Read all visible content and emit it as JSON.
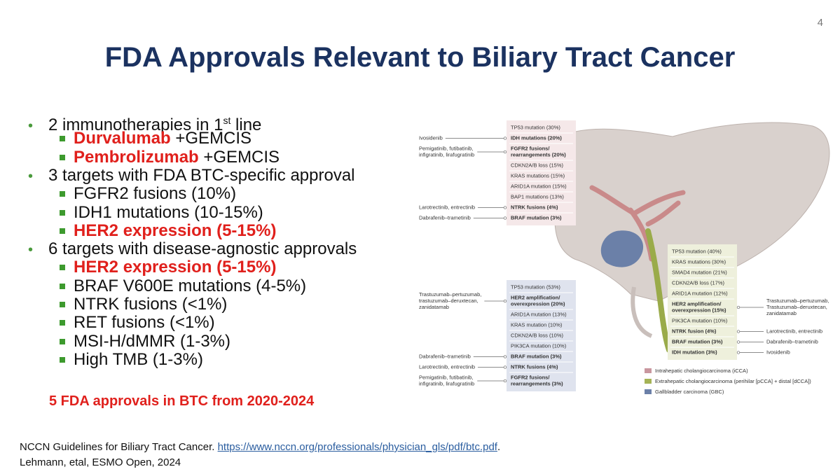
{
  "page_number": "4",
  "title": "FDA Approvals Relevant to Biliary Tract Cancer",
  "bullets": [
    {
      "text": "2 immunotherapies in 1",
      "sup": "st",
      "after": " line",
      "sub": [
        {
          "highlight": "Durvalumab",
          "text": " +GEMCIS"
        },
        {
          "highlight": "Pembrolizumab",
          "text": " +GEMCIS"
        }
      ]
    },
    {
      "text": "3 targets with FDA BTC-specific approval",
      "sub": [
        {
          "text": "FGFR2 fusions (10%)"
        },
        {
          "text": "IDH1 mutations (10-15%)"
        },
        {
          "highlight": "HER2 expression (5-15%)"
        }
      ]
    },
    {
      "text": "6 targets with disease-agnostic approvals",
      "sub": [
        {
          "highlight": "HER2 expression (5-15%)"
        },
        {
          "text": "BRAF V600E mutations (4-5%)"
        },
        {
          "text": "NTRK fusions (<1%)"
        },
        {
          "text": "RET fusions (<1%)"
        },
        {
          "text": "MSI-H/dMMR (1-3%)"
        },
        {
          "text": "High TMB (1-3%)"
        }
      ]
    }
  ],
  "note": "5 FDA approvals in BTC from 2020-2024",
  "references": [
    {
      "text": "NCCN Guidelines for Biliary Tract Cancer. ",
      "link": "https://www.nccn.org/professionals/physician_gls/pdf/btc.pdf",
      "after": "."
    },
    {
      "text": "Lehmann, etal, ESMO Open, 2024"
    }
  ],
  "figure": {
    "groups": [
      {
        "legend": "Intrahepatic cholangiocarcinoma (iCCA)",
        "color": "#c9979f",
        "box_color": "#f5e8e9",
        "items": [
          {
            "text": [
              "TP53 mutation (30%)"
            ]
          },
          {
            "text": [
              "IDH mutations (20%)"
            ],
            "bold": true,
            "drug": [
              "Ivosidenib"
            ]
          },
          {
            "text": [
              "FGFR2 fusions/",
              "rearrangements (20%)"
            ],
            "bold": true,
            "drug": [
              "Pemigatinib, futibatinib,",
              "infigratinib, lirafugratinib"
            ]
          },
          {
            "text": [
              "CDKN2A/B loss (15%)"
            ]
          },
          {
            "text": [
              "KRAS mutations (15%)"
            ]
          },
          {
            "text": [
              "ARID1A mutation (15%)"
            ]
          },
          {
            "text": [
              "BAP1 mutations (13%)"
            ]
          },
          {
            "text": [
              "NTRK fusions (4%)"
            ],
            "bold": true,
            "drug": [
              "Larotrectinib, entrectinib"
            ]
          },
          {
            "text": [
              "BRAF mutation (3%)"
            ],
            "bold": true,
            "drug": [
              "Dabrafenib–trametinib"
            ]
          }
        ]
      },
      {
        "legend": "Extrahepatic cholangiocarcinoma (perihilar [pCCA] + distal [dCCA])",
        "color": "#a5b356",
        "box_color": "#eef0dc",
        "items": [
          {
            "text": [
              "TP53 mutation (40%)"
            ]
          },
          {
            "text": [
              "KRAS mutations (30%)"
            ]
          },
          {
            "text": [
              "SMAD4 mutation (21%)"
            ]
          },
          {
            "text": [
              "CDKN2A/B loss (17%)"
            ]
          },
          {
            "text": [
              "ARID1A mutation (12%)"
            ]
          },
          {
            "text": [
              "HER2 amplification/",
              "overexpression (15%)"
            ],
            "bold": true,
            "drug": [
              "Trastuzumab–pertuzumab,",
              "Trastuzumab–deruxtecan,",
              "zanidatamab"
            ]
          },
          {
            "text": [
              "PIK3CA mutation (10%)"
            ]
          },
          {
            "text": [
              "NTRK fusion (4%)"
            ],
            "bold": true,
            "drug": [
              "Larotrectinib, entrectinib"
            ]
          },
          {
            "text": [
              "BRAF mutation (3%)"
            ],
            "bold": true,
            "drug": [
              "Dabrafenib–trametinib"
            ]
          },
          {
            "text": [
              "IDH mutation (3%)"
            ],
            "bold": true,
            "drug": [
              "Ivosidenib"
            ]
          }
        ]
      },
      {
        "legend": "Gallbladder carcinoma (GBC)",
        "color": "#6b80a8",
        "box_color": "#dfe3ee",
        "items": [
          {
            "text": [
              "TP53 mutation (53%)"
            ]
          },
          {
            "text": [
              "HER2 amplification/",
              "overexpression (20%)"
            ],
            "bold": true,
            "drug": [
              "Trastuzumab–pertuzumab,",
              "trastuzumab–deruxtecan,",
              "zanidatamab"
            ]
          },
          {
            "text": [
              "ARID1A mutation (13%)"
            ]
          },
          {
            "text": [
              "KRAS mutation (10%)"
            ]
          },
          {
            "text": [
              "CDKN2A/B loss (10%)"
            ]
          },
          {
            "text": [
              "PIK3CA mutation (10%)"
            ]
          },
          {
            "text": [
              "BRAF mutation (3%)"
            ],
            "bold": true,
            "drug": [
              "Dabrafenib–trametinib"
            ]
          },
          {
            "text": [
              "NTRK fusions (4%)"
            ],
            "bold": true,
            "drug": [
              "Larotrectinib, entrectinib"
            ]
          },
          {
            "text": [
              "FGFR2 fusions/",
              "rearrangements (3%)"
            ],
            "bold": true,
            "drug": [
              "Pemigatinib, futibatinib,",
              "infigratinib, lirafugratinib"
            ]
          }
        ]
      }
    ]
  }
}
